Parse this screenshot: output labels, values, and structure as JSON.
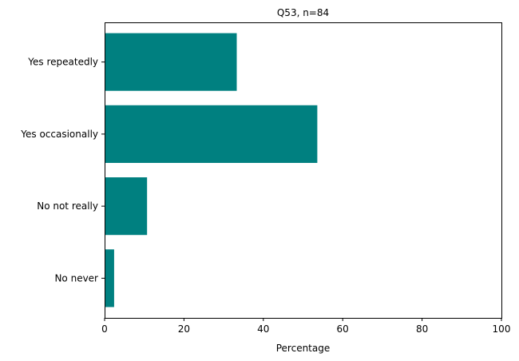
{
  "chart_data": {
    "type": "bar",
    "orientation": "horizontal",
    "title": "Q53, n=84",
    "xlabel": "Percentage",
    "ylabel": "",
    "categories": [
      "Yes repeatedly",
      "Yes occasionally",
      "No not really",
      "No never"
    ],
    "values": [
      33.3,
      53.6,
      10.7,
      2.4
    ],
    "xlim": [
      0,
      100
    ],
    "xticks": [
      0,
      20,
      40,
      60,
      80,
      100
    ],
    "grid": false,
    "legend": "none",
    "color": "#008080"
  }
}
